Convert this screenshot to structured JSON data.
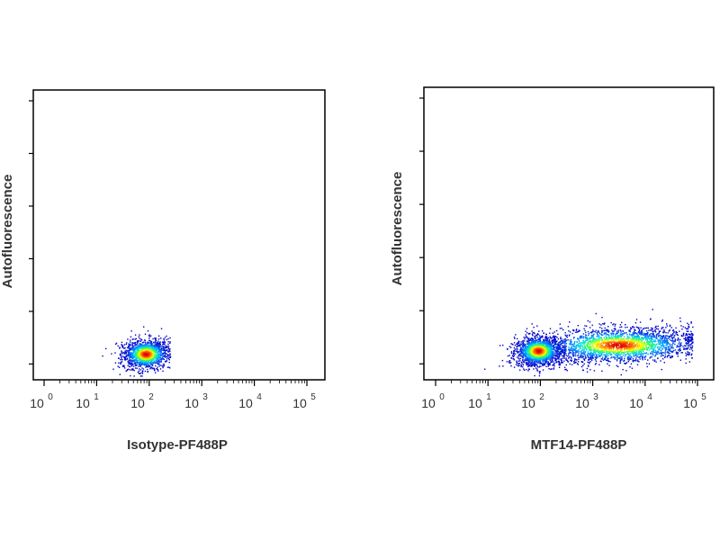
{
  "chart_data": [
    {
      "type": "scatter",
      "panel": "left",
      "xlabel": "Isotype-PF488P",
      "ylabel": "Autofluorescence",
      "xscale": "log",
      "xlim": [
        1,
        100000
      ],
      "x_ticks": [
        {
          "base": "10",
          "exp": "0"
        },
        {
          "base": "10",
          "exp": "1"
        },
        {
          "base": "10",
          "exp": "2"
        },
        {
          "base": "10",
          "exp": "3"
        },
        {
          "base": "10",
          "exp": "4"
        },
        {
          "base": "10",
          "exp": "5"
        }
      ],
      "y_ticks_labeled": false,
      "grid": false,
      "density_colormap": [
        "#0000c8",
        "#0080ff",
        "#00e0e0",
        "#40ff40",
        "#ffff00",
        "#ff8000",
        "#e00000"
      ],
      "populations": [
        {
          "x_center": 85,
          "x_spread_log": 0.22,
          "y_center_frac": 0.09,
          "y_spread_frac": 0.025,
          "count": 1400,
          "peak_x": 85,
          "x_max": 250
        }
      ]
    },
    {
      "type": "scatter",
      "panel": "right",
      "xlabel": "MTF14-PF488P",
      "ylabel": "Autofluorescence",
      "xscale": "log",
      "xlim": [
        1,
        100000
      ],
      "x_ticks": [
        {
          "base": "10",
          "exp": "0"
        },
        {
          "base": "10",
          "exp": "1"
        },
        {
          "base": "10",
          "exp": "2"
        },
        {
          "base": "10",
          "exp": "3"
        },
        {
          "base": "10",
          "exp": "4"
        },
        {
          "base": "10",
          "exp": "5"
        }
      ],
      "y_ticks_labeled": false,
      "grid": false,
      "density_colormap": [
        "#0000c8",
        "#0080ff",
        "#00e0e0",
        "#40ff40",
        "#ffff00",
        "#ff8000",
        "#e00000"
      ],
      "populations": [
        {
          "x_center": 90,
          "x_spread_log": 0.22,
          "y_center_frac": 0.1,
          "y_spread_frac": 0.025,
          "count": 1600,
          "peak_x": 90,
          "x_max": 300
        },
        {
          "x_center": 3000,
          "x_spread_log": 0.75,
          "y_center_frac": 0.12,
          "y_spread_frac": 0.03,
          "count": 2600,
          "peak_x": 3000,
          "x_max": 80000
        }
      ]
    }
  ]
}
